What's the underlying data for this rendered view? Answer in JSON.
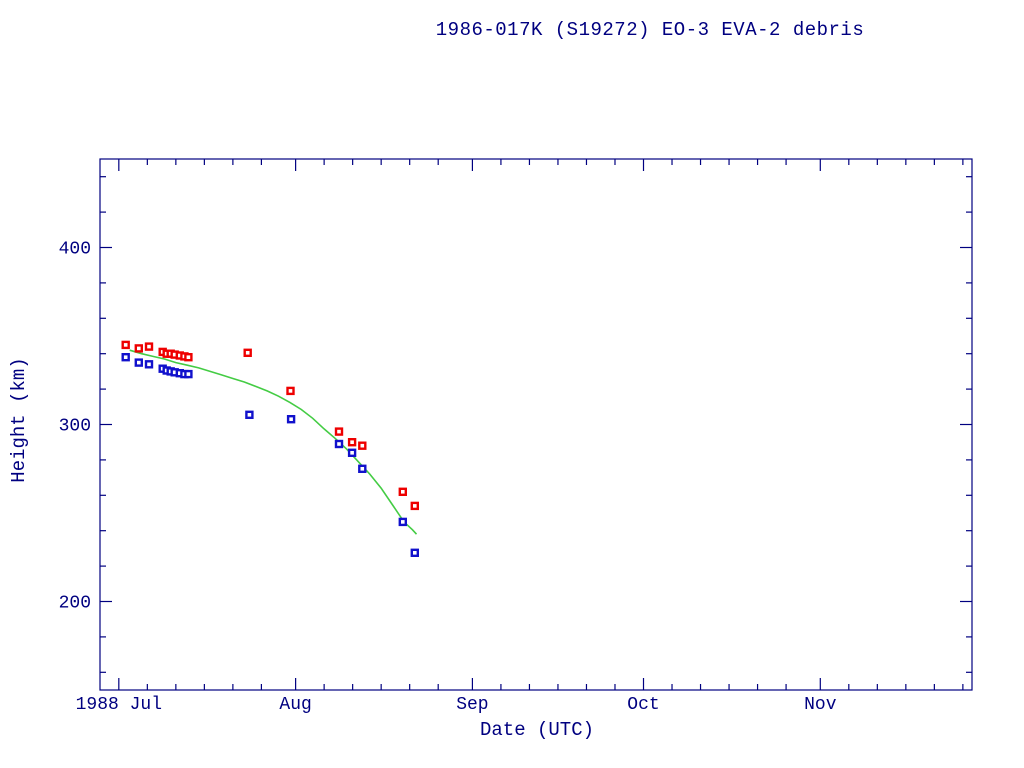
{
  "chart_data": {
    "type": "scatter",
    "title": "1986-017K (S19272) EO-3 EVA-2 debris",
    "xlabel": "Date (UTC)",
    "ylabel": "Height (km)",
    "x_unit": "days since 1988-07-01",
    "x_domain": [
      -3.3,
      149.6
    ],
    "y_domain": [
      150,
      450
    ],
    "y_major_ticks": [
      {
        "label": "200",
        "value": 200
      },
      {
        "label": "300",
        "value": 300
      },
      {
        "label": "400",
        "value": 400
      }
    ],
    "y_minor_step": 20,
    "x_major_ticks": [
      {
        "label": "1988 Jul",
        "day": 0
      },
      {
        "label": "Aug",
        "day": 31
      },
      {
        "label": "Sep",
        "day": 62
      },
      {
        "label": "Oct",
        "day": 92
      },
      {
        "label": "Nov",
        "day": 123
      }
    ],
    "x_minor_offsets_days": [
      5,
      10,
      15,
      20,
      25
    ],
    "grid": false,
    "legend": "none",
    "colors": {
      "axis": "#000080",
      "background": "#ffffff",
      "red_squares": "#ee0000",
      "blue_squares": "#1111cc",
      "green_curve": "#44cc44"
    },
    "series": [
      {
        "name": "red-squares",
        "type": "scatter",
        "marker": "open-square",
        "color": "#ee0000",
        "points": [
          [
            1.2,
            345
          ],
          [
            3.5,
            343
          ],
          [
            5.3,
            344
          ],
          [
            7.7,
            341
          ],
          [
            8.4,
            340
          ],
          [
            9.1,
            340
          ],
          [
            9.8,
            339.5
          ],
          [
            10.7,
            339
          ],
          [
            11.5,
            338.5
          ],
          [
            12.2,
            338
          ],
          [
            22.6,
            340.5
          ],
          [
            30.1,
            319
          ],
          [
            38.6,
            296
          ],
          [
            40.9,
            290
          ],
          [
            42.7,
            288
          ],
          [
            49.8,
            262
          ],
          [
            51.9,
            254
          ]
        ]
      },
      {
        "name": "blue-squares",
        "type": "scatter",
        "marker": "open-square",
        "color": "#1111cc",
        "points": [
          [
            1.2,
            338
          ],
          [
            3.5,
            335
          ],
          [
            5.3,
            334
          ],
          [
            7.7,
            331.5
          ],
          [
            8.4,
            330.5
          ],
          [
            9.1,
            330
          ],
          [
            9.8,
            329.5
          ],
          [
            10.7,
            329
          ],
          [
            11.5,
            328.5
          ],
          [
            12.2,
            328.5
          ],
          [
            22.9,
            305.5
          ],
          [
            30.2,
            303
          ],
          [
            38.6,
            289
          ],
          [
            40.9,
            284
          ],
          [
            42.7,
            275
          ],
          [
            49.8,
            245
          ],
          [
            51.9,
            227.5
          ]
        ]
      },
      {
        "name": "green-curve",
        "type": "line",
        "color": "#44cc44",
        "points": [
          [
            1.9,
            342
          ],
          [
            4,
            340
          ],
          [
            6,
            338.5
          ],
          [
            8,
            337
          ],
          [
            10,
            335
          ],
          [
            12,
            333.5
          ],
          [
            14,
            332
          ],
          [
            16,
            330
          ],
          [
            18,
            328
          ],
          [
            20,
            326
          ],
          [
            22,
            324
          ],
          [
            24,
            321.5
          ],
          [
            26,
            319
          ],
          [
            28,
            316
          ],
          [
            30,
            312.5
          ],
          [
            32,
            308.5
          ],
          [
            34,
            303.5
          ],
          [
            36,
            297.5
          ],
          [
            38,
            292
          ],
          [
            40,
            286
          ],
          [
            42,
            279
          ],
          [
            44,
            272
          ],
          [
            46,
            264
          ],
          [
            48,
            254.5
          ],
          [
            50,
            245
          ],
          [
            51.5,
            240.5
          ],
          [
            52.2,
            238
          ]
        ]
      }
    ]
  }
}
